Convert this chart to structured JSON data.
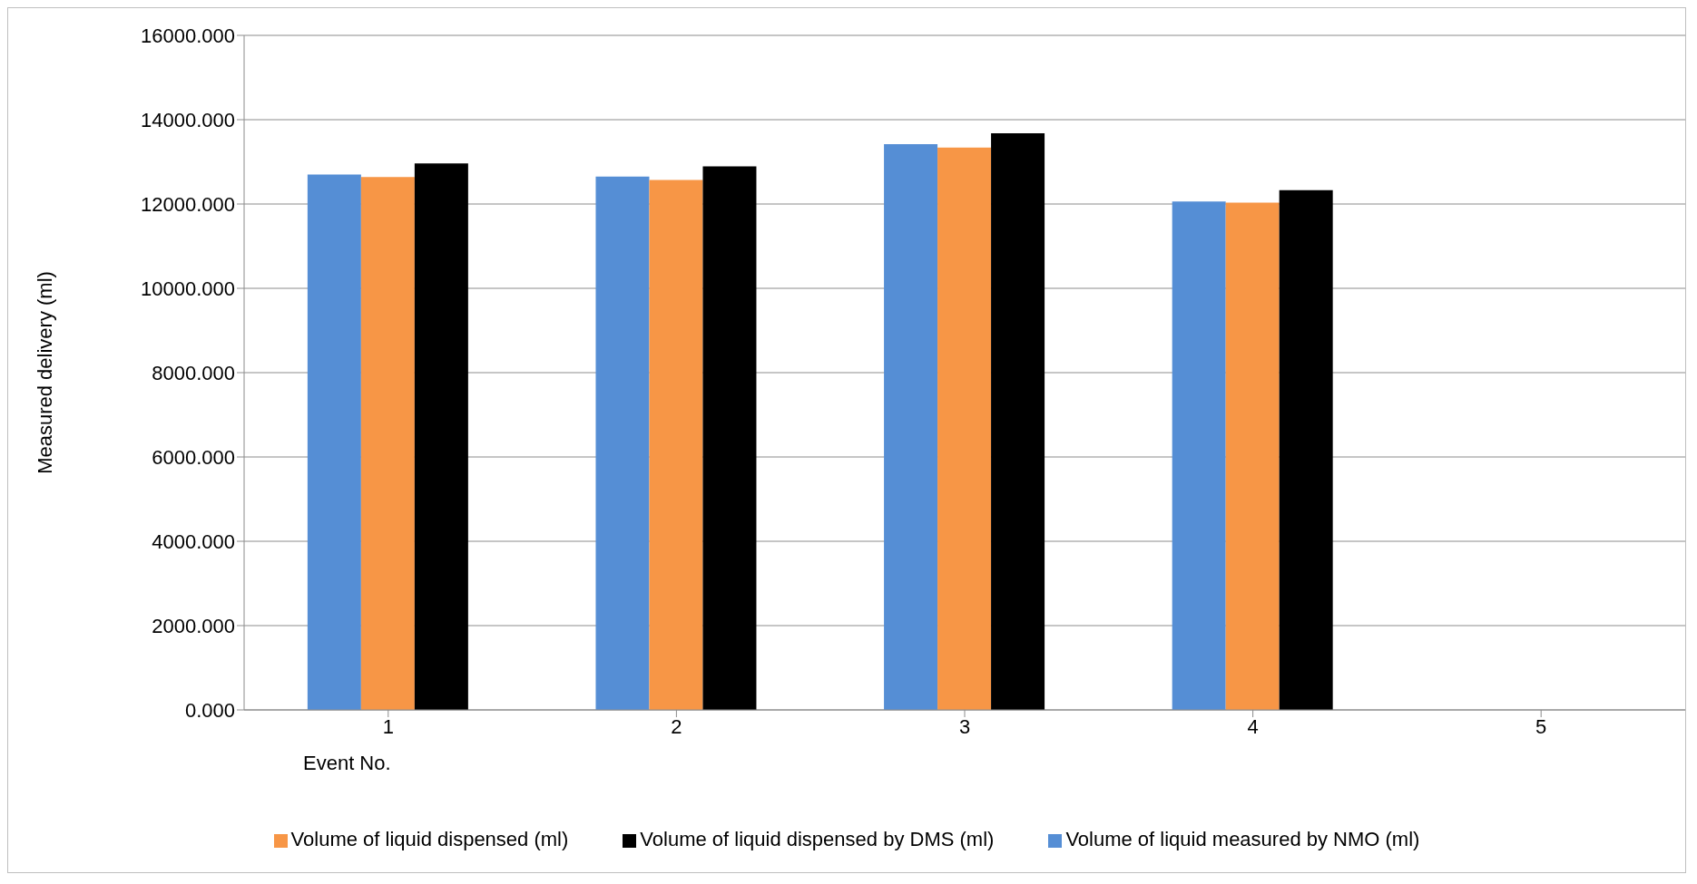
{
  "chart_data": {
    "type": "bar",
    "xlabel": "Event No.",
    "ylabel": "Measured delivery (ml)",
    "categories": [
      "1",
      "2",
      "3",
      "4",
      "5"
    ],
    "series": [
      {
        "name": "Volume of liquid measured by NMO (ml)",
        "color": "#558ed5",
        "values": [
          12700,
          12650,
          13420,
          12060,
          null
        ]
      },
      {
        "name": "Volume of liquid dispensed (ml)",
        "color": "#f79646",
        "values": [
          12640,
          12570,
          13340,
          12030,
          null
        ]
      },
      {
        "name": "Volume of liquid dispensed by DMS (ml)",
        "color": "#000000",
        "values": [
          12960,
          12890,
          13680,
          12330,
          null
        ]
      }
    ],
    "ylim": [
      0,
      16000
    ],
    "yticks": [
      {
        "value": 0,
        "label": "0.000"
      },
      {
        "value": 2000,
        "label": "2000.000"
      },
      {
        "value": 4000,
        "label": "4000.000"
      },
      {
        "value": 6000,
        "label": "6000.000"
      },
      {
        "value": 8000,
        "label": "8000.000"
      },
      {
        "value": 10000,
        "label": "10000.000"
      },
      {
        "value": 12000,
        "label": "12000.000"
      },
      {
        "value": 14000,
        "label": "14000.000"
      },
      {
        "value": 16000,
        "label": "16000.000"
      }
    ],
    "grid": "y",
    "legend": "bottom"
  }
}
